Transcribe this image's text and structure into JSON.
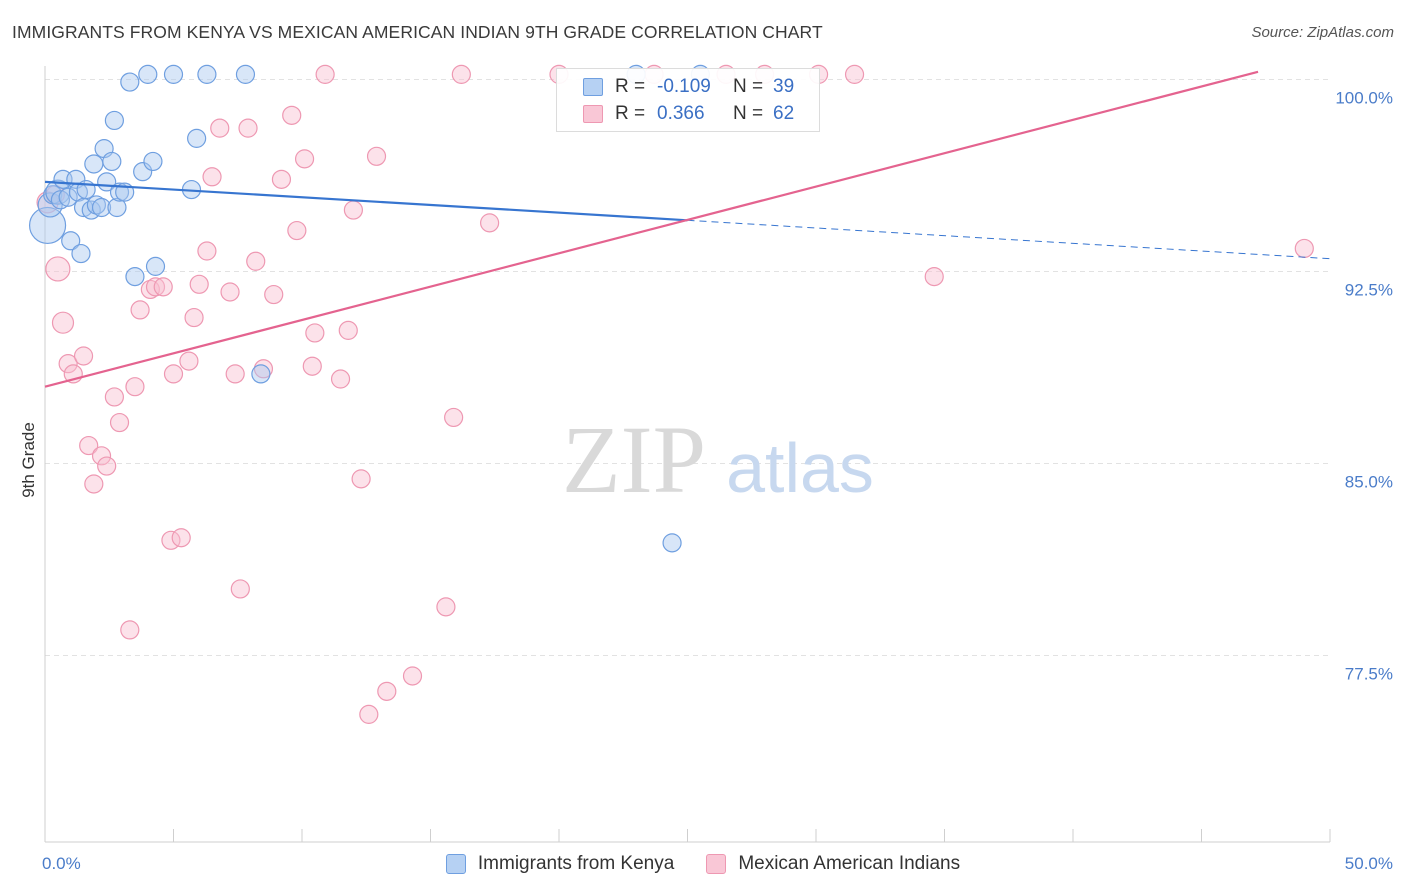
{
  "header": {
    "title": "IMMIGRANTS FROM KENYA VS MEXICAN AMERICAN INDIAN 9TH GRADE CORRELATION CHART",
    "source": "Source: ZipAtlas.com"
  },
  "watermark": {
    "zip": "ZIP",
    "atlas": "atlas"
  },
  "legend_top": [
    {
      "r_label": "R =",
      "r_value": "-0.109",
      "n_label": "N =",
      "n_value": "39"
    },
    {
      "r_label": "R =",
      "r_value": "0.366",
      "n_label": "N =",
      "n_value": "62"
    }
  ],
  "legend_bottom": {
    "kenya": "Immigrants from Kenya",
    "mexican": "Mexican American Indians"
  },
  "colors": {
    "kenya_fill": "#a8c8f0",
    "kenya_stroke": "#6f9fe0",
    "kenya_line": "#3775d0",
    "mexican_fill": "#f8bfd0",
    "mexican_stroke": "#ee98b2",
    "mexican_line": "#e4638f",
    "tick_text": "#4a7cc9"
  },
  "chart_data": {
    "type": "scatter",
    "title": "IMMIGRANTS FROM KENYA VS MEXICAN AMERICAN INDIAN 9TH GRADE CORRELATION CHART",
    "xlabel": "",
    "ylabel": "9th Grade",
    "xlim": [
      0,
      50
    ],
    "ylim": [
      70.0,
      100.7
    ],
    "x_tick_labels": [
      {
        "value": 0,
        "label": "0.0%"
      },
      {
        "value": 50,
        "label": "50.0%"
      }
    ],
    "y_ticks": [
      {
        "value": 100.0,
        "label": "100.0%"
      },
      {
        "value": 92.5,
        "label": "92.5%"
      },
      {
        "value": 85.0,
        "label": "85.0%"
      },
      {
        "value": 77.5,
        "label": "77.5%"
      }
    ],
    "series": [
      {
        "name": "Immigrants from Kenya",
        "r": -0.109,
        "n": 39,
        "trend": {
          "x0": 0,
          "y0": 96.0,
          "x1": 25.0,
          "y1": 94.5,
          "dashed_to_x": 50,
          "dashed_to_y": 93.0
        },
        "points": [
          [
            0.1,
            94.3
          ],
          [
            0.2,
            95.1
          ],
          [
            0.3,
            95.5
          ],
          [
            0.5,
            95.6
          ],
          [
            0.6,
            95.3
          ],
          [
            0.7,
            96.1
          ],
          [
            0.9,
            95.4
          ],
          [
            1.0,
            93.7
          ],
          [
            1.2,
            96.1
          ],
          [
            1.3,
            95.6
          ],
          [
            1.4,
            93.2
          ],
          [
            1.5,
            95.0
          ],
          [
            1.6,
            95.7
          ],
          [
            1.8,
            94.9
          ],
          [
            1.9,
            96.7
          ],
          [
            2.0,
            95.1
          ],
          [
            2.2,
            95.0
          ],
          [
            2.3,
            97.3
          ],
          [
            2.4,
            96.0
          ],
          [
            2.6,
            96.8
          ],
          [
            2.7,
            98.4
          ],
          [
            2.8,
            95.0
          ],
          [
            2.9,
            95.6
          ],
          [
            3.1,
            95.6
          ],
          [
            3.3,
            99.9
          ],
          [
            3.5,
            92.3
          ],
          [
            3.8,
            96.4
          ],
          [
            4.0,
            100.2
          ],
          [
            4.2,
            96.8
          ],
          [
            4.3,
            92.7
          ],
          [
            5.0,
            100.2
          ],
          [
            5.7,
            95.7
          ],
          [
            5.9,
            97.7
          ],
          [
            6.3,
            100.2
          ],
          [
            7.8,
            100.2
          ],
          [
            8.4,
            88.5
          ],
          [
            23.0,
            100.2
          ],
          [
            24.4,
            81.9
          ],
          [
            25.5,
            100.2
          ]
        ]
      },
      {
        "name": "Mexican American Indians",
        "r": 0.366,
        "n": 62,
        "trend": {
          "x0": 0,
          "y0": 88.0,
          "x1": 47.2,
          "y1": 100.3
        },
        "points": [
          [
            0.1,
            95.2
          ],
          [
            0.4,
            95.5
          ],
          [
            0.5,
            92.6
          ],
          [
            0.7,
            90.5
          ],
          [
            0.9,
            88.9
          ],
          [
            1.1,
            88.5
          ],
          [
            1.5,
            89.2
          ],
          [
            1.7,
            85.7
          ],
          [
            1.9,
            84.2
          ],
          [
            2.2,
            85.3
          ],
          [
            2.4,
            84.9
          ],
          [
            2.7,
            87.6
          ],
          [
            2.9,
            86.6
          ],
          [
            3.3,
            78.5
          ],
          [
            3.5,
            88.0
          ],
          [
            3.7,
            91.0
          ],
          [
            4.1,
            91.8
          ],
          [
            4.3,
            91.9
          ],
          [
            4.6,
            91.9
          ],
          [
            4.9,
            82.0
          ],
          [
            5.0,
            88.5
          ],
          [
            5.3,
            82.1
          ],
          [
            5.6,
            89.0
          ],
          [
            5.8,
            90.7
          ],
          [
            6.0,
            92.0
          ],
          [
            6.3,
            93.3
          ],
          [
            6.5,
            96.2
          ],
          [
            6.8,
            98.1
          ],
          [
            7.2,
            91.7
          ],
          [
            7.4,
            88.5
          ],
          [
            7.6,
            80.1
          ],
          [
            7.9,
            98.1
          ],
          [
            8.2,
            92.9
          ],
          [
            8.5,
            88.7
          ],
          [
            8.9,
            91.6
          ],
          [
            9.2,
            96.1
          ],
          [
            9.6,
            98.6
          ],
          [
            9.8,
            94.1
          ],
          [
            10.1,
            96.9
          ],
          [
            10.4,
            88.8
          ],
          [
            10.5,
            90.1
          ],
          [
            10.9,
            100.2
          ],
          [
            11.5,
            88.3
          ],
          [
            11.8,
            90.2
          ],
          [
            12.0,
            94.9
          ],
          [
            12.3,
            84.4
          ],
          [
            12.6,
            75.2
          ],
          [
            12.9,
            97.0
          ],
          [
            13.3,
            76.1
          ],
          [
            14.3,
            76.7
          ],
          [
            15.6,
            79.4
          ],
          [
            15.9,
            86.8
          ],
          [
            16.2,
            100.2
          ],
          [
            17.3,
            94.4
          ],
          [
            20.0,
            100.2
          ],
          [
            23.7,
            100.2
          ],
          [
            26.5,
            100.2
          ],
          [
            28.0,
            100.2
          ],
          [
            30.1,
            100.2
          ],
          [
            31.5,
            100.2
          ],
          [
            34.6,
            92.3
          ],
          [
            49.0,
            93.4
          ]
        ]
      }
    ]
  }
}
